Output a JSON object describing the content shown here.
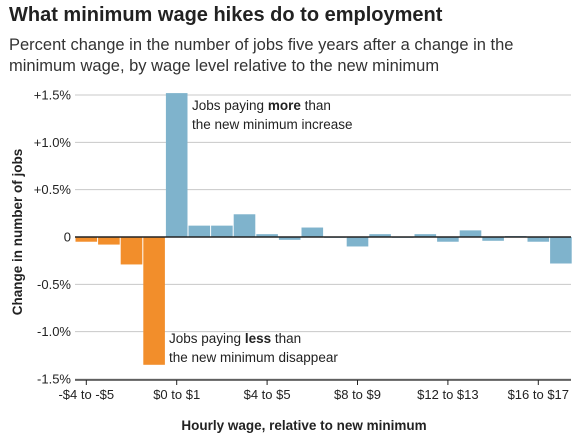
{
  "title": "What minimum wage hikes do to employment",
  "subtitle": "Percent change in the number of jobs five years after a change in the minimum wage, by wage level relative to the new minimum",
  "chart_data": {
    "type": "bar",
    "title": "What minimum wage hikes do to employment",
    "subtitle": "Percent change in the number of jobs five years after a change in the minimum wage, by wage level relative to the new minimum",
    "xlabel": "Hourly wage, relative to new minimum",
    "ylabel": "Change in number of jobs",
    "ylim": [
      -1.5,
      1.5
    ],
    "y_ticks": [
      1.5,
      1.0,
      0.5,
      0,
      -0.5,
      -1.0,
      -1.5
    ],
    "y_tick_labels": [
      "+1.5%",
      "+1.0%",
      "+0.5%",
      "0",
      "-0.5%",
      "-1.0%",
      "-1.5%"
    ],
    "x_tick_labels": [
      "-$4 to -$5",
      "$0 to $1",
      "$4 to $5",
      "$8 to $9",
      "$12 to $13",
      "$16 to $17"
    ],
    "values": [
      -0.05,
      -0.08,
      -0.29,
      -1.35,
      1.52,
      0.12,
      0.12,
      0.24,
      0.03,
      -0.03,
      0.1,
      0.0,
      -0.1,
      0.03,
      0.0,
      0.03,
      -0.05,
      0.07,
      -0.04,
      0.01,
      -0.05,
      -0.28
    ],
    "colors": {
      "negative_group": "#f28e2b",
      "positive_group": "#7fb3cc",
      "axis": "#222222",
      "grid": "#c8c8c8"
    },
    "annotations": [
      {
        "parts": [
          {
            "text": "Jobs paying ",
            "bold": false
          },
          {
            "text": "more",
            "bold": true
          },
          {
            "text": " than",
            "bold": false
          }
        ],
        "line2": "the new minimum increase"
      },
      {
        "parts": [
          {
            "text": "Jobs paying ",
            "bold": false
          },
          {
            "text": "less",
            "bold": true
          },
          {
            "text": " than",
            "bold": false
          }
        ],
        "line2": "the new minimum disappear"
      }
    ],
    "grid": true
  }
}
